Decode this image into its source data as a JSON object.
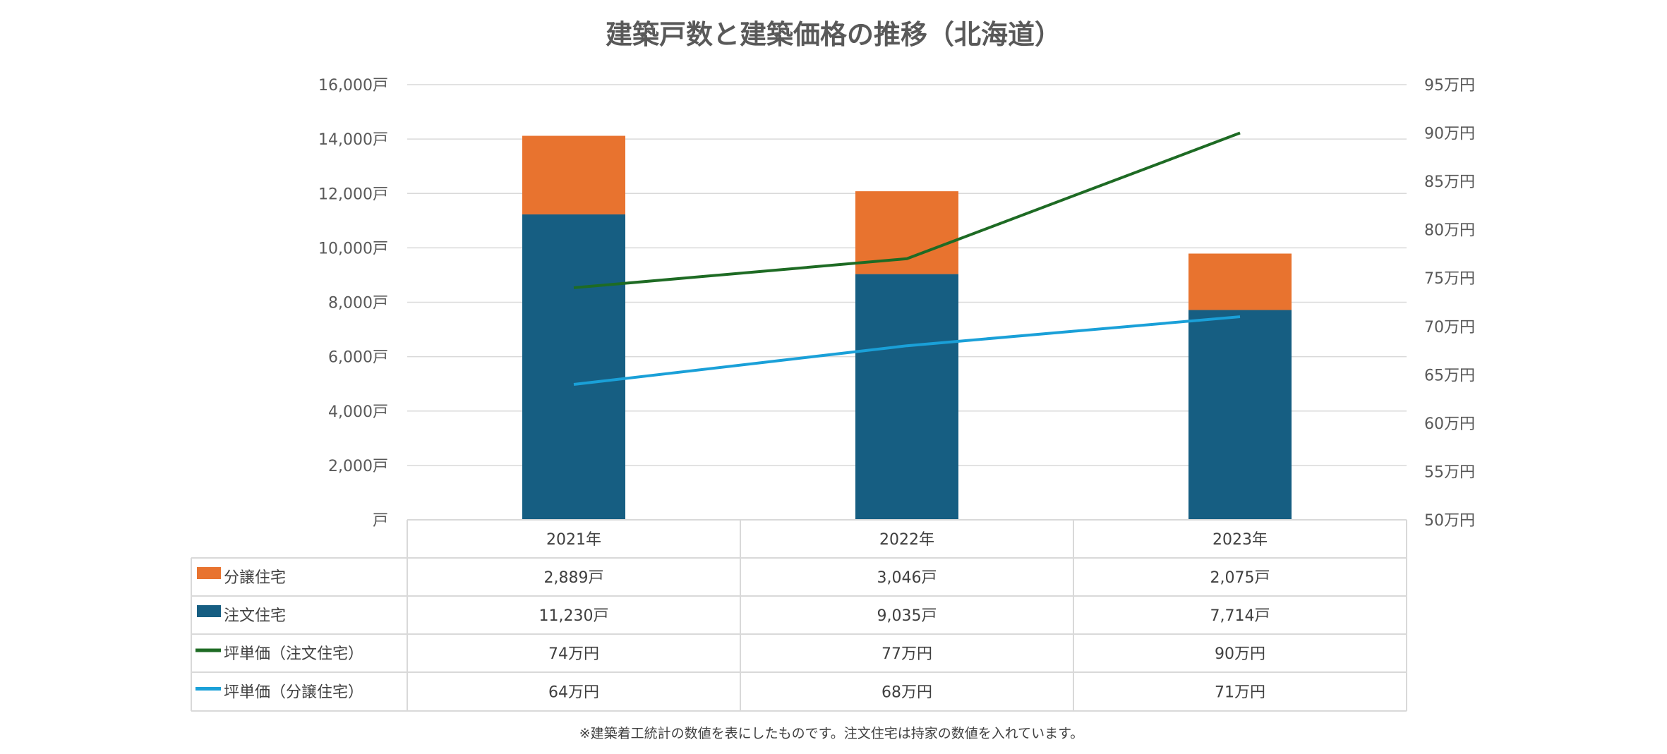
{
  "chart_data": {
    "type": "bar+line",
    "title": "建築戸数と建築価格の推移（北海道）",
    "categories": [
      "2021年",
      "2022年",
      "2023年"
    ],
    "y_left": {
      "min": 0,
      "max": 16000,
      "step": 2000,
      "unit": "戸",
      "tick_labels": [
        "戸",
        "2,000戸",
        "4,000戸",
        "6,000戸",
        "8,000戸",
        "10,000戸",
        "12,000戸",
        "14,000戸",
        "16,000戸"
      ]
    },
    "y_right": {
      "min": 50,
      "max": 95,
      "step": 5,
      "unit": "万円",
      "tick_labels": [
        "50万円",
        "55万円",
        "60万円",
        "65万円",
        "70万円",
        "75万円",
        "80万円",
        "85万円",
        "90万円",
        "95万円"
      ]
    },
    "grid": true,
    "legend_placement": "data-table",
    "series": [
      {
        "name": "分譲住宅",
        "kind": "stacked-bar",
        "axis": "left",
        "color": "#E8732F",
        "values": [
          2889,
          3046,
          2075
        ],
        "labels": [
          "2,889戸",
          "3,046戸",
          "2,075戸"
        ]
      },
      {
        "name": "注文住宅",
        "kind": "stacked-bar",
        "axis": "left",
        "color": "#165E82",
        "values": [
          11230,
          9035,
          7714
        ],
        "labels": [
          "11,230戸",
          "9,035戸",
          "7,714戸"
        ]
      },
      {
        "name": "坪単価（注文住宅）",
        "kind": "line",
        "axis": "right",
        "color": "#1E6B24",
        "values": [
          74,
          77,
          90
        ],
        "labels": [
          "74万円",
          "77万円",
          "90万円"
        ]
      },
      {
        "name": "坪単価（分譲住宅）",
        "kind": "line",
        "axis": "right",
        "color": "#1AA0D8",
        "values": [
          64,
          68,
          71
        ],
        "labels": [
          "64万円",
          "68万円",
          "71万円"
        ]
      }
    ],
    "footnote": "※建築着工統計の数値を表にしたものです。注文住宅は持家の数値を入れています。"
  }
}
